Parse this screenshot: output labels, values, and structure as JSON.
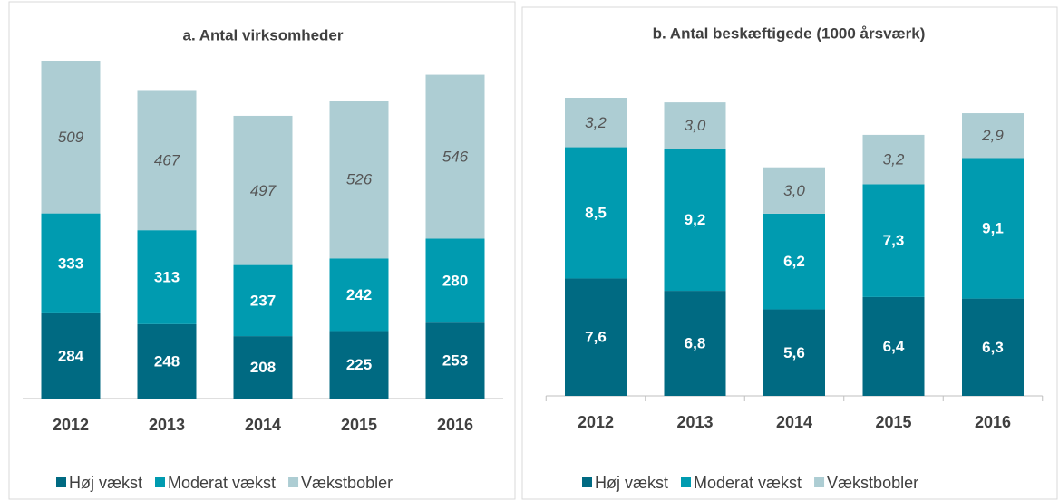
{
  "chart_data": [
    {
      "type": "bar",
      "stacked": true,
      "title": "a. Antal virksomheder",
      "categories": [
        "2012",
        "2013",
        "2014",
        "2015",
        "2016"
      ],
      "series": [
        {
          "name": "Høj vækst",
          "color": "#006a82",
          "values": [
            284,
            248,
            208,
            225,
            253
          ]
        },
        {
          "name": "Moderat vækst",
          "color": "#009bb0",
          "values": [
            333,
            313,
            237,
            242,
            280
          ]
        },
        {
          "name": "Vækstbobler",
          "color": "#adcdd3",
          "values": [
            509,
            467,
            497,
            526,
            546
          ]
        }
      ],
      "legend": "bottom"
    },
    {
      "type": "bar",
      "stacked": true,
      "title": "b. Antal beskæftigede (1000 årsværk)",
      "categories": [
        "2012",
        "2013",
        "2014",
        "2015",
        "2016"
      ],
      "series": [
        {
          "name": "Høj vækst",
          "color": "#006a82",
          "values": [
            7.6,
            6.8,
            5.6,
            6.4,
            6.3
          ],
          "value_labels": [
            "7,6",
            "6,8",
            "5,6",
            "6,4",
            "6,3"
          ]
        },
        {
          "name": "Moderat vækst",
          "color": "#009bb0",
          "values": [
            8.5,
            9.2,
            6.2,
            7.3,
            9.1
          ],
          "value_labels": [
            "8,5",
            "9,2",
            "6,2",
            "7,3",
            "9,1"
          ]
        },
        {
          "name": "Vækstbobler",
          "color": "#adcdd3",
          "values": [
            3.2,
            3.0,
            3.0,
            3.2,
            2.9
          ],
          "value_labels": [
            "3,2",
            "3,0",
            "3,0",
            "3,2",
            "2,9"
          ]
        }
      ],
      "legend": "bottom"
    }
  ]
}
